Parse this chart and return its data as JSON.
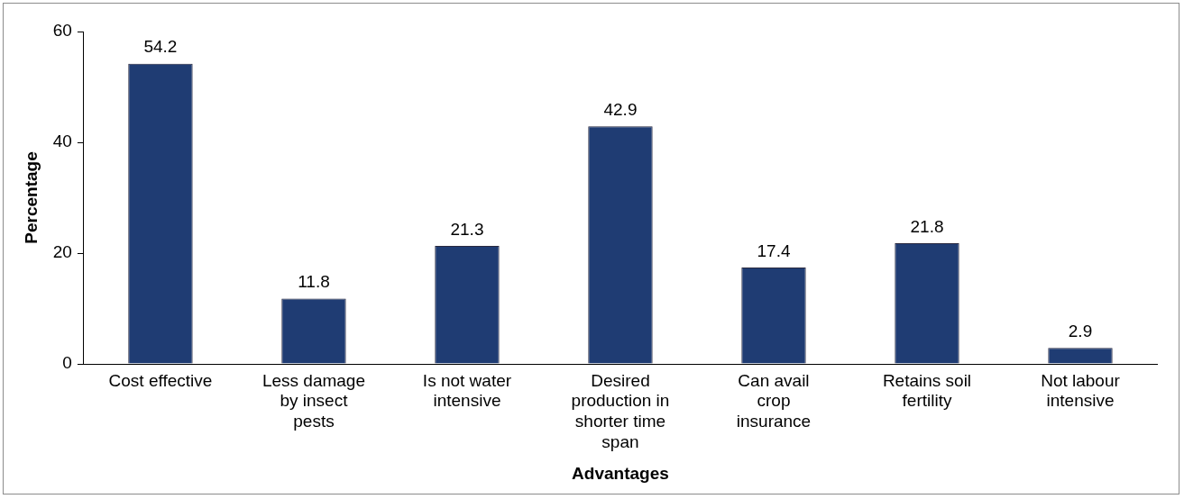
{
  "chart_data": {
    "type": "bar",
    "categories": [
      "Cost effective",
      "Less damage\nby insect\npests",
      "Is not water\nintensive",
      "Desired\nproduction in\nshorter time\nspan",
      "Can avail\ncrop\ninsurance",
      "Retains soil\nfertility",
      "Not labour\nintensive"
    ],
    "values": [
      54.2,
      11.8,
      21.3,
      42.9,
      17.4,
      21.8,
      2.9
    ],
    "color": "#1f3c73",
    "xlabel": "Advantages",
    "ylabel": "Percentage",
    "ylim": [
      0,
      60
    ],
    "yticks": [
      0,
      20,
      40,
      60
    ],
    "grid": false,
    "legend": false,
    "data_labels": true
  }
}
